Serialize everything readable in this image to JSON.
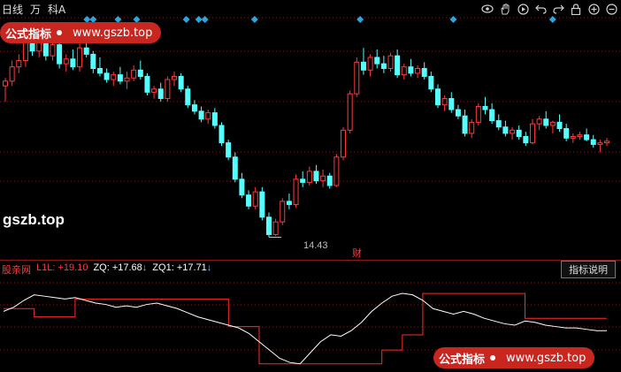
{
  "toolbar": {
    "period_label": "日线",
    "view_label": "万",
    "subject_label": "科A"
  },
  "icons": [
    "eye-icon",
    "hand-icon",
    "play-icon",
    "undo-icon",
    "redo-icon",
    "lock-icon",
    "zoom-in-icon",
    "zoom-out-icon"
  ],
  "badge": {
    "text": "公式指标",
    "url": "www.gszb.top"
  },
  "watermark": "gszb.top",
  "low_label": "14.43",
  "event_label": "财",
  "indicator": {
    "name": "股亲网",
    "l1l_label": "L1L:",
    "l1l_value": "+19.10",
    "zq_label": "ZQ:",
    "zq_value": "+17.68",
    "zq1_label": "ZQ1:",
    "zq1_value": "+17.71",
    "down_arrow": "↓",
    "help_button": "指标说明"
  },
  "colors": {
    "up": "#ff3b3b",
    "down": "#54ffff",
    "marker": "#29a8e0",
    "indicator_line": "#ffffff",
    "indicator_red": "#ff2a2a",
    "grid": "#8b1a1a"
  },
  "chart_data": {
    "type": "candlestick",
    "low_price": 14.43,
    "candles": [
      [
        24.0,
        24.5,
        23.0,
        24.3
      ],
      [
        24.3,
        25.6,
        24.0,
        25.2
      ],
      [
        25.2,
        26.0,
        24.8,
        25.6
      ],
      [
        25.6,
        27.0,
        25.2,
        26.8
      ],
      [
        26.8,
        27.4,
        25.9,
        26.2
      ],
      [
        26.2,
        27.6,
        25.8,
        27.1
      ],
      [
        27.1,
        27.3,
        25.6,
        25.9
      ],
      [
        25.9,
        26.9,
        25.6,
        26.6
      ],
      [
        26.6,
        26.9,
        25.1,
        25.4
      ],
      [
        25.4,
        26.0,
        24.9,
        25.7
      ],
      [
        25.7,
        26.3,
        25.0,
        25.2
      ],
      [
        25.2,
        26.8,
        24.9,
        26.4
      ],
      [
        26.4,
        27.1,
        25.8,
        26.0
      ],
      [
        26.0,
        26.2,
        24.8,
        25.1
      ],
      [
        25.1,
        25.8,
        24.6,
        24.8
      ],
      [
        24.8,
        25.1,
        24.2,
        24.4
      ],
      [
        24.4,
        24.9,
        24.0,
        24.7
      ],
      [
        24.7,
        25.2,
        24.1,
        24.3
      ],
      [
        24.3,
        24.9,
        23.8,
        24.5
      ],
      [
        24.5,
        25.3,
        24.3,
        25.0
      ],
      [
        25.0,
        25.6,
        24.4,
        24.6
      ],
      [
        24.6,
        24.8,
        23.4,
        23.6
      ],
      [
        23.6,
        24.0,
        23.2,
        23.8
      ],
      [
        23.8,
        24.2,
        23.0,
        23.2
      ],
      [
        23.2,
        24.6,
        23.0,
        24.4
      ],
      [
        24.4,
        24.9,
        24.0,
        24.6
      ],
      [
        24.6,
        24.8,
        23.6,
        23.8
      ],
      [
        23.8,
        24.0,
        22.6,
        22.8
      ],
      [
        22.8,
        23.1,
        22.2,
        22.4
      ],
      [
        22.4,
        22.7,
        21.7,
        21.9
      ],
      [
        21.9,
        22.5,
        21.6,
        22.3
      ],
      [
        22.3,
        22.6,
        21.3,
        21.5
      ],
      [
        21.5,
        21.7,
        20.2,
        20.4
      ],
      [
        20.4,
        20.6,
        19.3,
        19.5
      ],
      [
        19.5,
        19.8,
        17.9,
        18.1
      ],
      [
        18.1,
        18.5,
        16.9,
        17.1
      ],
      [
        17.1,
        17.4,
        16.2,
        16.4
      ],
      [
        16.4,
        17.6,
        16.2,
        17.3
      ],
      [
        17.3,
        17.6,
        15.5,
        15.7
      ],
      [
        15.7,
        16.0,
        14.43,
        14.6
      ],
      [
        14.6,
        15.6,
        14.5,
        15.4
      ],
      [
        15.4,
        16.9,
        15.2,
        16.7
      ],
      [
        16.7,
        17.2,
        16.2,
        16.5
      ],
      [
        16.5,
        18.4,
        16.3,
        18.1
      ],
      [
        18.1,
        18.6,
        17.6,
        17.9
      ],
      [
        17.9,
        18.9,
        17.7,
        18.6
      ],
      [
        18.6,
        19.0,
        17.8,
        18.0
      ],
      [
        18.0,
        18.7,
        17.6,
        18.3
      ],
      [
        18.3,
        18.5,
        17.5,
        17.7
      ],
      [
        17.7,
        19.7,
        17.6,
        19.5
      ],
      [
        19.5,
        21.4,
        19.3,
        21.2
      ],
      [
        21.2,
        23.7,
        21.0,
        23.5
      ],
      [
        23.5,
        25.8,
        23.3,
        25.5
      ],
      [
        25.5,
        26.4,
        24.7,
        25.0
      ],
      [
        25.0,
        26.0,
        24.6,
        25.8
      ],
      [
        25.8,
        26.3,
        25.1,
        25.4
      ],
      [
        25.4,
        25.9,
        24.8,
        25.1
      ],
      [
        25.1,
        26.1,
        24.9,
        25.9
      ],
      [
        25.9,
        26.3,
        24.5,
        24.7
      ],
      [
        24.7,
        25.4,
        24.4,
        25.2
      ],
      [
        25.2,
        25.7,
        24.6,
        24.8
      ],
      [
        24.8,
        25.3,
        24.5,
        25.1
      ],
      [
        25.1,
        25.5,
        24.4,
        24.6
      ],
      [
        24.6,
        24.9,
        23.6,
        23.8
      ],
      [
        23.8,
        24.1,
        22.6,
        22.8
      ],
      [
        22.8,
        23.4,
        22.4,
        23.2
      ],
      [
        23.2,
        23.6,
        22.3,
        22.5
      ],
      [
        22.5,
        22.8,
        21.9,
        22.1
      ],
      [
        22.1,
        22.5,
        20.8,
        21.0
      ],
      [
        21.0,
        21.9,
        20.7,
        21.7
      ],
      [
        21.7,
        22.9,
        21.5,
        22.7
      ],
      [
        22.7,
        23.3,
        22.2,
        22.5
      ],
      [
        22.5,
        22.9,
        21.6,
        21.8
      ],
      [
        21.8,
        22.2,
        21.2,
        21.4
      ],
      [
        21.4,
        21.8,
        20.8,
        21.0
      ],
      [
        21.0,
        21.4,
        20.6,
        21.2
      ],
      [
        21.2,
        21.5,
        20.6,
        20.8
      ],
      [
        20.8,
        21.1,
        20.2,
        20.4
      ],
      [
        20.4,
        21.9,
        20.3,
        21.6
      ],
      [
        21.6,
        22.1,
        21.2,
        21.9
      ],
      [
        21.9,
        22.4,
        21.3,
        21.5
      ],
      [
        21.5,
        21.8,
        21.0,
        21.7
      ],
      [
        21.7,
        22.2,
        21.1,
        21.3
      ],
      [
        21.3,
        21.6,
        20.5,
        20.7
      ],
      [
        20.7,
        21.0,
        20.4,
        20.8
      ],
      [
        20.8,
        21.1,
        20.6,
        20.9
      ],
      [
        20.9,
        21.3,
        20.5,
        20.6
      ],
      [
        20.6,
        20.9,
        20.1,
        20.3
      ],
      [
        20.3,
        20.6,
        19.8,
        20.4
      ],
      [
        20.4,
        20.7,
        20.2,
        20.5
      ]
    ],
    "markers": [
      0.14,
      0.15,
      0.19,
      0.22,
      0.3,
      0.32,
      0.33,
      0.41,
      0.58,
      0.73,
      0.89
    ],
    "indicator": {
      "zq_white": [
        17.0,
        17.3,
        17.8,
        18.2,
        18.1,
        18.0,
        17.9,
        18.0,
        17.8,
        17.6,
        17.5,
        17.3,
        17.4,
        17.3,
        17.5,
        17.6,
        17.4,
        17.2,
        16.9,
        16.6,
        16.4,
        16.2,
        16.0,
        15.8,
        15.4,
        14.8,
        14.2,
        13.6,
        13.3,
        13.2,
        14.0,
        14.8,
        15.3,
        15.2,
        15.6,
        16.2,
        17.0,
        17.6,
        18.1,
        18.3,
        18.2,
        17.8,
        17.2,
        17.0,
        16.8,
        17.0,
        16.8,
        16.5,
        16.3,
        16.1,
        16.0,
        16.3,
        16.2,
        16.0,
        15.9,
        15.8,
        15.8,
        15.7,
        15.6,
        15.6
      ],
      "l1l_red": [
        17.2,
        17.2,
        17.2,
        16.6,
        16.6,
        16.6,
        16.6,
        17.9,
        17.9,
        17.9,
        17.9,
        17.9,
        17.9,
        17.9,
        17.9,
        17.9,
        17.9,
        17.9,
        17.9,
        17.9,
        17.9,
        17.9,
        15.9,
        15.9,
        15.9,
        13.2,
        13.2,
        13.2,
        13.2,
        13.2,
        13.2,
        13.2,
        13.2,
        13.2,
        13.2,
        13.2,
        13.2,
        14.2,
        14.2,
        15.3,
        15.3,
        18.3,
        18.3,
        18.3,
        18.3,
        18.3,
        18.3,
        18.3,
        18.3,
        18.3,
        18.3,
        16.5,
        16.5,
        16.5,
        16.5,
        16.5,
        16.5,
        16.5,
        16.5,
        16.5
      ],
      "l1l_value": 19.1,
      "zq_value": 17.68,
      "zq1_value": 17.71
    }
  }
}
